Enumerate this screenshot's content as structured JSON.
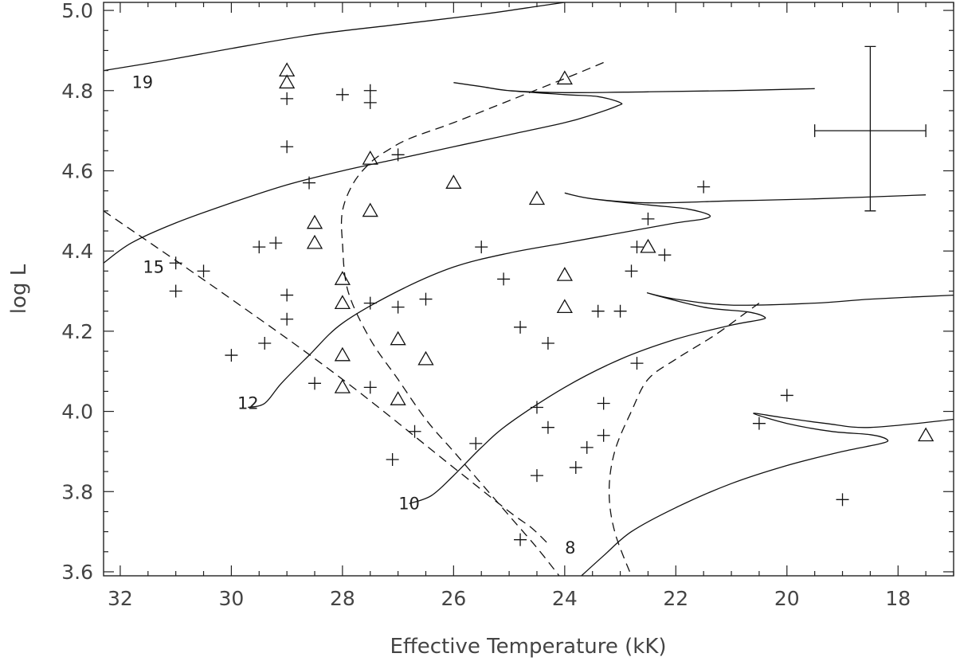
{
  "chart_data": {
    "type": "scatter",
    "title": "",
    "xlabel": "Effective Temperature (kK)",
    "ylabel": "log L",
    "xlim": [
      32.3,
      17.0
    ],
    "ylim": [
      3.59,
      5.02
    ],
    "x_reversed": true,
    "grid": false,
    "x_ticks": [
      {
        "value": 32,
        "label": "32"
      },
      {
        "value": 30,
        "label": "30"
      },
      {
        "value": 28,
        "label": "28"
      },
      {
        "value": 26,
        "label": "26"
      },
      {
        "value": 24,
        "label": "24"
      },
      {
        "value": 22,
        "label": "22"
      },
      {
        "value": 20,
        "label": "20"
      },
      {
        "value": 18,
        "label": "18"
      }
    ],
    "y_ticks": [
      {
        "value": 3.6,
        "label": "3.6"
      },
      {
        "value": 3.8,
        "label": "3.8"
      },
      {
        "value": 4.0,
        "label": "4.0"
      },
      {
        "value": 4.2,
        "label": "4.2"
      },
      {
        "value": 4.4,
        "label": "4.4"
      },
      {
        "value": 4.6,
        "label": "4.6"
      },
      {
        "value": 4.8,
        "label": "4.8"
      },
      {
        "value": 5.0,
        "label": "5.0"
      }
    ],
    "track_labels": [
      {
        "text": "19",
        "x": 31.6,
        "y": 4.82
      },
      {
        "text": "15",
        "x": 31.4,
        "y": 4.36
      },
      {
        "text": "12",
        "x": 29.7,
        "y": 4.02
      },
      {
        "text": "10",
        "x": 26.8,
        "y": 3.77
      },
      {
        "text": "8",
        "x": 23.9,
        "y": 3.66
      }
    ],
    "tracks": [
      {
        "mass": "19",
        "points": [
          [
            32.3,
            4.85
          ],
          [
            31.2,
            4.875
          ],
          [
            30,
            4.905
          ],
          [
            28.5,
            4.94
          ],
          [
            27,
            4.965
          ],
          [
            25.5,
            4.99
          ],
          [
            24.5,
            5.01
          ],
          [
            24,
            5.02
          ]
        ]
      },
      {
        "mass": "15",
        "points": [
          [
            32.3,
            4.37
          ],
          [
            31.8,
            4.42
          ],
          [
            31,
            4.47
          ],
          [
            30,
            4.52
          ],
          [
            29,
            4.565
          ],
          [
            28,
            4.6
          ],
          [
            27,
            4.63
          ],
          [
            26,
            4.66
          ],
          [
            25,
            4.69
          ],
          [
            24,
            4.72
          ],
          [
            23.5,
            4.74
          ],
          [
            23.05,
            4.762
          ],
          [
            23,
            4.77
          ],
          [
            23.4,
            4.785
          ],
          [
            24,
            4.79
          ],
          [
            25,
            4.8
          ],
          [
            25.5,
            4.81
          ],
          [
            26,
            4.82
          ],
          [
            25.5,
            4.81
          ],
          [
            25,
            4.8
          ],
          [
            24,
            4.795
          ],
          [
            22.5,
            4.797
          ],
          [
            21,
            4.8
          ],
          [
            19.5,
            4.805
          ]
        ]
      },
      {
        "mass": "12",
        "points": [
          [
            29.7,
            4.01
          ],
          [
            29.4,
            4.02
          ],
          [
            29.1,
            4.07
          ],
          [
            28.6,
            4.14
          ],
          [
            28,
            4.22
          ],
          [
            27,
            4.3
          ],
          [
            26,
            4.36
          ],
          [
            25,
            4.395
          ],
          [
            24,
            4.42
          ],
          [
            23,
            4.445
          ],
          [
            22,
            4.47
          ],
          [
            21.5,
            4.48
          ],
          [
            21.4,
            4.49
          ],
          [
            21.8,
            4.505
          ],
          [
            22.5,
            4.515
          ],
          [
            23.5,
            4.53
          ],
          [
            24,
            4.545
          ],
          [
            23.5,
            4.53
          ],
          [
            22.5,
            4.52
          ],
          [
            21,
            4.525
          ],
          [
            19.5,
            4.53
          ],
          [
            17.5,
            4.54
          ]
        ]
      },
      {
        "mass": "10",
        "points": [
          [
            26.8,
            3.77
          ],
          [
            26.4,
            3.79
          ],
          [
            26,
            3.84
          ],
          [
            25.5,
            3.91
          ],
          [
            25,
            3.97
          ],
          [
            24,
            4.06
          ],
          [
            23,
            4.13
          ],
          [
            22,
            4.18
          ],
          [
            21,
            4.215
          ],
          [
            20.5,
            4.228
          ],
          [
            20.4,
            4.235
          ],
          [
            20.7,
            4.248
          ],
          [
            21.5,
            4.26
          ],
          [
            22.5,
            4.295
          ],
          [
            22,
            4.28
          ],
          [
            21,
            4.265
          ],
          [
            19.5,
            4.27
          ],
          [
            18.5,
            4.28
          ],
          [
            17,
            4.29
          ]
        ]
      },
      {
        "mass": "8",
        "points": [
          [
            23.7,
            3.59
          ],
          [
            23.3,
            3.64
          ],
          [
            22.8,
            3.7
          ],
          [
            22,
            3.76
          ],
          [
            21,
            3.82
          ],
          [
            20,
            3.865
          ],
          [
            19,
            3.9
          ],
          [
            18.3,
            3.92
          ],
          [
            18.2,
            3.93
          ],
          [
            18.5,
            3.942
          ],
          [
            19.2,
            3.95
          ],
          [
            20,
            3.97
          ],
          [
            20.6,
            3.995
          ],
          [
            20.1,
            3.985
          ],
          [
            19.3,
            3.97
          ],
          [
            18.5,
            3.96
          ],
          [
            17,
            3.98
          ]
        ]
      }
    ],
    "dashed_lines": [
      {
        "name": "zams",
        "points": [
          [
            32.3,
            4.5
          ],
          [
            30,
            4.28
          ],
          [
            28,
            4.08
          ],
          [
            26,
            3.86
          ],
          [
            25,
            3.75
          ],
          [
            24.6,
            3.71
          ],
          [
            24.3,
            3.67
          ]
        ]
      },
      {
        "name": "tams-upper",
        "points": [
          [
            23.3,
            4.87
          ],
          [
            24,
            4.83
          ],
          [
            25,
            4.775
          ],
          [
            26,
            4.72
          ],
          [
            26.8,
            4.68
          ],
          [
            27.2,
            4.65
          ],
          [
            27.5,
            4.62
          ],
          [
            27.8,
            4.57
          ],
          [
            28,
            4.5
          ],
          [
            28,
            4.42
          ],
          [
            27.9,
            4.3
          ],
          [
            27.5,
            4.18
          ],
          [
            27,
            4.08
          ],
          [
            26.5,
            3.98
          ],
          [
            26,
            3.9
          ],
          [
            25.5,
            3.82
          ],
          [
            25,
            3.74
          ],
          [
            24.5,
            3.66
          ],
          [
            24.1,
            3.59
          ]
        ]
      },
      {
        "name": "tams-lower",
        "points": [
          [
            20.5,
            4.27
          ],
          [
            20.8,
            4.24
          ],
          [
            21.3,
            4.19
          ],
          [
            22,
            4.13
          ],
          [
            22.5,
            4.08
          ],
          [
            22.8,
            4.0
          ],
          [
            23.1,
            3.9
          ],
          [
            23.2,
            3.8
          ],
          [
            23.1,
            3.7
          ],
          [
            22.8,
            3.59
          ]
        ]
      }
    ],
    "series": [
      {
        "name": "",
        "marker": "plus",
        "points": [
          [
            29,
            4.78
          ],
          [
            28,
            4.79
          ],
          [
            27.5,
            4.8
          ],
          [
            27.5,
            4.77
          ],
          [
            29,
            4.66
          ],
          [
            27,
            4.64
          ],
          [
            28.6,
            4.57
          ],
          [
            29.5,
            4.41
          ],
          [
            29.2,
            4.42
          ],
          [
            31,
            4.37
          ],
          [
            30.5,
            4.35
          ],
          [
            31,
            4.3
          ],
          [
            29,
            4.29
          ],
          [
            29,
            4.23
          ],
          [
            30,
            4.14
          ],
          [
            29.4,
            4.17
          ],
          [
            27.5,
            4.27
          ],
          [
            27,
            4.26
          ],
          [
            26.5,
            4.28
          ],
          [
            25.5,
            4.41
          ],
          [
            25.1,
            4.33
          ],
          [
            24.8,
            4.21
          ],
          [
            24.3,
            4.17
          ],
          [
            23.4,
            4.25
          ],
          [
            23,
            4.25
          ],
          [
            22.8,
            4.35
          ],
          [
            22.7,
            4.41
          ],
          [
            22.5,
            4.48
          ],
          [
            22.2,
            4.39
          ],
          [
            21.5,
            4.56
          ],
          [
            22.7,
            4.12
          ],
          [
            28.5,
            4.07
          ],
          [
            27.5,
            4.06
          ],
          [
            26.7,
            3.95
          ],
          [
            25.6,
            3.92
          ],
          [
            24.5,
            4.01
          ],
          [
            24.3,
            3.96
          ],
          [
            23.3,
            4.02
          ],
          [
            23.3,
            3.94
          ],
          [
            23.6,
            3.91
          ],
          [
            27.1,
            3.88
          ],
          [
            24.5,
            3.84
          ],
          [
            23.8,
            3.86
          ],
          [
            20.5,
            3.97
          ],
          [
            20,
            4.04
          ],
          [
            19,
            3.78
          ],
          [
            24.8,
            3.68
          ]
        ]
      },
      {
        "name": "",
        "marker": "triangle",
        "points": [
          [
            29,
            4.85
          ],
          [
            29,
            4.82
          ],
          [
            24,
            4.83
          ],
          [
            27.5,
            4.63
          ],
          [
            26,
            4.57
          ],
          [
            24.5,
            4.53
          ],
          [
            27.5,
            4.5
          ],
          [
            28.5,
            4.47
          ],
          [
            28.5,
            4.42
          ],
          [
            28,
            4.33
          ],
          [
            28,
            4.27
          ],
          [
            24,
            4.34
          ],
          [
            24,
            4.26
          ],
          [
            22.5,
            4.41
          ],
          [
            27,
            4.18
          ],
          [
            28,
            4.14
          ],
          [
            26.5,
            4.13
          ],
          [
            28,
            4.06
          ],
          [
            27,
            4.03
          ],
          [
            17.5,
            3.94
          ]
        ]
      }
    ],
    "error_bar": {
      "x": 18.5,
      "y": 4.7,
      "x_err": 1.0,
      "y_err_up": 0.21,
      "y_err_down": 0.2
    }
  }
}
